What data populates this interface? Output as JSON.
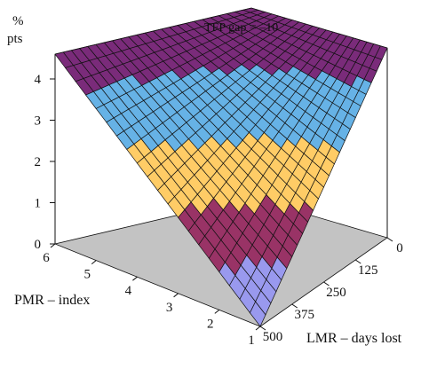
{
  "chart_data": {
    "type": "surface",
    "annotation": "TFP gap = –10",
    "z_axis": {
      "unit_line1": "%",
      "unit_line2": "pts",
      "ticks": [
        "0",
        "1",
        "2",
        "3",
        "4"
      ],
      "range": [
        0,
        4.6
      ]
    },
    "x_axis": {
      "label": "PMR – index",
      "ticks": [
        "6",
        "5",
        "4",
        "3",
        "2",
        "1"
      ],
      "range": [
        6,
        1
      ]
    },
    "y_axis": {
      "label": "LMR – days lost",
      "ticks": [
        "0",
        "125",
        "250",
        "375",
        "500"
      ],
      "range": [
        0,
        500
      ]
    },
    "z_min_shown": 0,
    "corner_values": [
      {
        "pmr": 6,
        "lmr": 0,
        "z": 4.6
      },
      {
        "pmr": 1,
        "lmr": 0,
        "z": 4.6
      },
      {
        "pmr": 6,
        "lmr": 500,
        "z": 4.6
      },
      {
        "pmr": 1,
        "lmr": 500,
        "z": 0
      }
    ],
    "color_bands": [
      {
        "from": 0,
        "to": 1,
        "color": "#9999ee"
      },
      {
        "from": 1,
        "to": 2,
        "color": "#993366"
      },
      {
        "from": 2,
        "to": 3,
        "color": "#ffcc66"
      },
      {
        "from": 3,
        "to": 4,
        "color": "#66b2e6"
      },
      {
        "from": 4,
        "to": 5,
        "color": "#7a2b7a"
      }
    ],
    "colors": {
      "floor": "#c3c3c3",
      "grid_line": "#111111"
    }
  }
}
